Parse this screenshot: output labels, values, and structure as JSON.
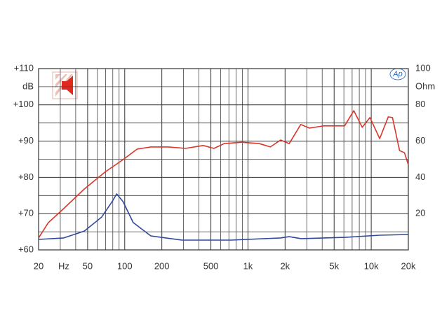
{
  "chart_data": {
    "type": "line",
    "logo": "Ap",
    "x_unit": "Hz",
    "y_unit": "dB",
    "y2_unit": "Ohm",
    "xscale": "log",
    "xlim": [
      20,
      20000
    ],
    "xticks": [
      20,
      50,
      100,
      200,
      500,
      {
        "value": 1000,
        "label": "1k"
      },
      {
        "value": 2000,
        "label": "2k"
      },
      {
        "value": 5000,
        "label": "5k"
      },
      {
        "value": 10000,
        "label": "10k"
      },
      {
        "value": 20000,
        "label": "20k"
      }
    ],
    "x_minor_grid": [
      30,
      40,
      60,
      70,
      80,
      90,
      300,
      400,
      600,
      700,
      800,
      900,
      3000,
      4000,
      6000,
      7000,
      8000,
      9000
    ],
    "ylim": [
      60,
      110
    ],
    "yticks": [
      {
        "value": 60,
        "label": "+60"
      },
      {
        "value": 70,
        "label": "+70"
      },
      {
        "value": 80,
        "label": "+80"
      },
      {
        "value": 90,
        "label": "+90"
      },
      {
        "value": 100,
        "label": "+100"
      },
      {
        "value": 110,
        "label": "+110"
      }
    ],
    "y_minor_grid": [
      65,
      75,
      85,
      95,
      105
    ],
    "y2lim": [
      0,
      100
    ],
    "y2ticks": [
      20,
      40,
      60,
      80,
      100
    ],
    "grid": true,
    "series": [
      {
        "color": "#d9372a",
        "x": [
          20,
          24,
          32,
          47,
          70,
          97,
          126,
          163,
          226,
          311,
          433,
          530,
          640,
          890,
          1240,
          1520,
          1840,
          2160,
          2680,
          3150,
          4110,
          6080,
          7220,
          8450,
          9770,
          11720,
          13740,
          14880,
          16970,
          18600,
          20000
        ],
        "values": [
          63.3,
          67.5,
          71.4,
          76.8,
          81.6,
          84.9,
          87.8,
          88.4,
          88.4,
          88,
          88.8,
          88,
          89.3,
          89.7,
          89.3,
          88.4,
          90.3,
          89.3,
          94.6,
          93.6,
          94.2,
          94.2,
          98.4,
          93.8,
          96.5,
          90.7,
          96.7,
          96.5,
          87.4,
          86.8,
          83.5
        ]
      },
      {
        "color": "#2f4a9a",
        "axis": "y2",
        "x": [
          20,
          32,
          47,
          65,
          79,
          86,
          97,
          117,
          163,
          292,
          735,
          1840,
          2160,
          2700,
          6080,
          11720,
          20000
        ],
        "values": [
          5.8,
          6.6,
          10.4,
          18.1,
          26.6,
          30.9,
          26.6,
          15.1,
          7.7,
          5.4,
          5.4,
          6.6,
          7.3,
          6.2,
          6.9,
          8.1,
          8.5
        ]
      }
    ]
  }
}
